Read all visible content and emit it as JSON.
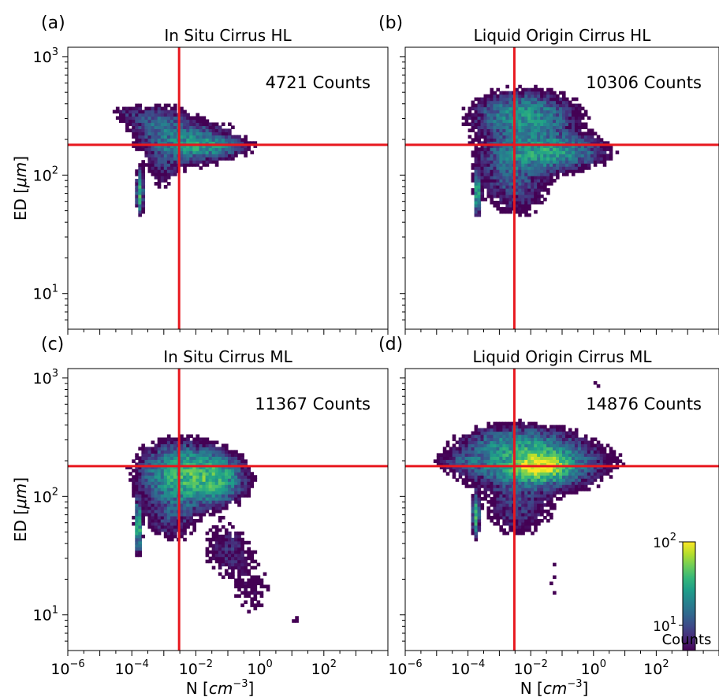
{
  "figure": {
    "xlabel_prefix": "N [",
    "xlabel_unit": "cm",
    "xlabel_exp": "−3",
    "xlabel_suffix": "]",
    "ylabel_prefix": "ED [",
    "ylabel_unit": "μm",
    "ylabel_suffix": "]",
    "x_tick_base": "10",
    "x_tick_exponents": [
      "−6",
      "−4",
      "−2",
      "0",
      "2"
    ],
    "y_tick_base": "10",
    "y_tick_exponents": [
      "1",
      "2",
      "3"
    ],
    "colorbar": {
      "label": "Counts",
      "tick_base": "10",
      "tick_exponents": [
        "1",
        "2"
      ],
      "colormap": "viridis",
      "scale": "log",
      "range": [
        5,
        100
      ]
    },
    "threshold_line_color": "#e8171e"
  },
  "chart_data": [
    {
      "type": "heatmap",
      "letter": "(a)",
      "title": "In Situ Cirrus HL",
      "annotation": "4721 Counts",
      "xscale": "log",
      "yscale": "log",
      "xlim": [
        1e-06,
        10000.0
      ],
      "ylim": [
        5,
        1200
      ],
      "threshold_x": 0.003,
      "threshold_y": 180,
      "total_counts": 4721,
      "blobs": [
        {
          "x_log": -3.2,
          "y_log": 2.45,
          "sx": 0.55,
          "sy": 0.09,
          "count": 12
        },
        {
          "x_log": -2.2,
          "y_log": 2.28,
          "sx": 0.85,
          "sy": 0.11,
          "count": 18
        },
        {
          "x_log": -1.6,
          "y_log": 2.24,
          "sx": 0.75,
          "sy": 0.05,
          "count": 14
        },
        {
          "x_log": -3.0,
          "y_log": 2.05,
          "sx": 0.35,
          "sy": 0.12,
          "count": 6
        },
        {
          "x_log": -4.2,
          "y_log": 2.52,
          "sx": 0.35,
          "sy": 0.04,
          "count": 5
        },
        {
          "x_log": -3.75,
          "y_log": 1.85,
          "sx": 0.06,
          "sy": 0.1,
          "count": 40
        }
      ]
    },
    {
      "type": "heatmap",
      "letter": "(b)",
      "title": "Liquid Origin Cirrus HL",
      "annotation": "10306 Counts",
      "xscale": "log",
      "yscale": "log",
      "xlim": [
        1e-06,
        10000.0
      ],
      "ylim": [
        5,
        1200
      ],
      "threshold_x": 0.003,
      "threshold_y": 180,
      "total_counts": 10306,
      "blobs": [
        {
          "x_log": -2.2,
          "y_log": 2.5,
          "sx": 0.95,
          "sy": 0.12,
          "count": 25
        },
        {
          "x_log": -1.5,
          "y_log": 2.2,
          "sx": 1.05,
          "sy": 0.09,
          "count": 28
        },
        {
          "x_log": -2.6,
          "y_log": 2.02,
          "sx": 0.75,
          "sy": 0.14,
          "count": 10
        },
        {
          "x_log": -2.4,
          "y_log": 1.8,
          "sx": 0.6,
          "sy": 0.12,
          "count": 5
        },
        {
          "x_log": -3.7,
          "y_log": 1.85,
          "sx": 0.06,
          "sy": 0.1,
          "count": 35
        }
      ]
    },
    {
      "type": "heatmap",
      "letter": "(c)",
      "title": "In Situ Cirrus ML",
      "annotation": "11367 Counts",
      "xscale": "log",
      "yscale": "log",
      "xlim": [
        1e-06,
        10000.0
      ],
      "ylim": [
        5,
        1200
      ],
      "threshold_x": 0.003,
      "threshold_y": 180,
      "total_counts": 11367,
      "blobs": [
        {
          "x_log": -2.5,
          "y_log": 2.2,
          "sx": 0.75,
          "sy": 0.15,
          "count": 28
        },
        {
          "x_log": -1.5,
          "y_log": 2.15,
          "sx": 0.6,
          "sy": 0.12,
          "count": 32
        },
        {
          "x_log": -2.8,
          "y_log": 1.85,
          "sx": 0.55,
          "sy": 0.15,
          "count": 9
        },
        {
          "x_log": -1.0,
          "y_log": 1.55,
          "sx": 0.5,
          "sy": 0.15,
          "count": 7
        },
        {
          "x_log": -0.2,
          "y_log": 1.2,
          "sx": 0.5,
          "sy": 0.18,
          "count": 4
        },
        {
          "x_log": 1.2,
          "y_log": 0.95,
          "sx": 0.35,
          "sy": 0.06,
          "count": 3
        },
        {
          "x_log": -3.8,
          "y_log": 1.75,
          "sx": 0.06,
          "sy": 0.12,
          "count": 40
        }
      ]
    },
    {
      "type": "heatmap",
      "letter": "(d)",
      "title": "Liquid Origin Cirrus ML",
      "annotation": "14876 Counts",
      "xscale": "log",
      "yscale": "log",
      "xlim": [
        1e-06,
        10000.0
      ],
      "ylim": [
        5,
        1200
      ],
      "threshold_x": 0.003,
      "threshold_y": 180,
      "total_counts": 14876,
      "blobs": [
        {
          "x_log": -1.7,
          "y_log": 2.26,
          "sx": 0.45,
          "sy": 0.06,
          "count": 90
        },
        {
          "x_log": -1.9,
          "y_log": 2.28,
          "sx": 1.25,
          "sy": 0.13,
          "count": 30
        },
        {
          "x_log": -2.5,
          "y_log": 2.45,
          "sx": 1.0,
          "sy": 0.1,
          "count": 14
        },
        {
          "x_log": -2.4,
          "y_log": 1.9,
          "sx": 0.7,
          "sy": 0.15,
          "count": 8
        },
        {
          "x_log": -4.2,
          "y_log": 2.3,
          "sx": 0.5,
          "sy": 0.05,
          "count": 6
        },
        {
          "x_log": -3.75,
          "y_log": 1.85,
          "sx": 0.06,
          "sy": 0.1,
          "count": 38
        },
        {
          "x_log": -1.3,
          "y_log": 1.3,
          "sx": 0.15,
          "sy": 0.2,
          "count": 3
        },
        {
          "x_log": 0.1,
          "y_log": 2.95,
          "sx": 0.15,
          "sy": 0.04,
          "count": 4
        }
      ]
    }
  ]
}
